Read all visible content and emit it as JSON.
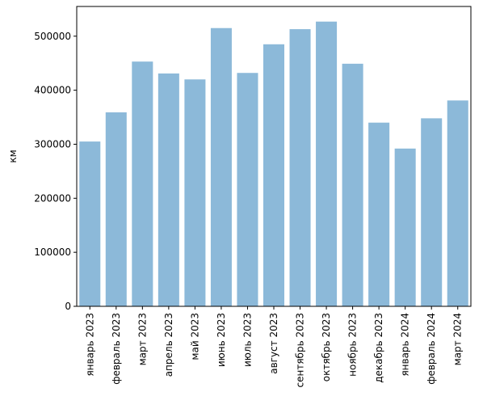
{
  "chart_data": {
    "type": "bar",
    "categories": [
      "январь 2023",
      "февраль 2023",
      "март 2023",
      "апрель 2023",
      "май 2023",
      "июнь 2023",
      "июль 2023",
      "август 2023",
      "сентябрь 2023",
      "октябрь 2023",
      "ноябрь 2023",
      "декабрь 2023",
      "январь 2024",
      "февраль 2024",
      "март 2024"
    ],
    "values": [
      305000,
      359000,
      453000,
      431000,
      420000,
      515000,
      432000,
      485000,
      513000,
      527000,
      449000,
      340000,
      292000,
      348000,
      381000
    ],
    "title": "",
    "xlabel": "",
    "ylabel": "км",
    "ylim": [
      0,
      555000
    ],
    "yticks": [
      0,
      100000,
      200000,
      300000,
      400000,
      500000
    ],
    "bar_color": "#8cb9d9",
    "grid": false,
    "legend": "none"
  }
}
